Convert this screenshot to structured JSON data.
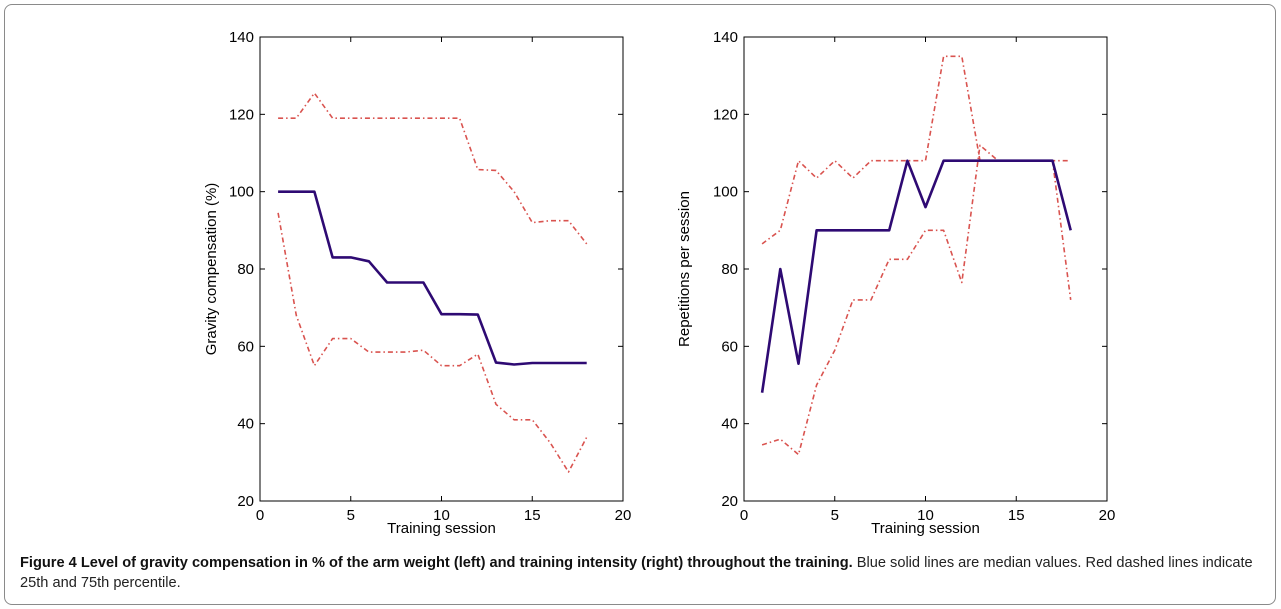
{
  "caption": {
    "label": "Figure 4",
    "title": "Level of gravity compensation in % of the arm weight (left) and training intensity (right) throughout the training.",
    "text": "Blue solid lines are median values. Red dashed lines indicate 25th and 75th percentile."
  },
  "colors": {
    "median": "#2e0a73",
    "percentile": "#d9534f",
    "axis": "#000000"
  },
  "chart_data": [
    {
      "type": "line",
      "title": "",
      "xlabel": "Training session",
      "ylabel": "Gravity compensation (%)",
      "xlim": [
        0,
        20
      ],
      "ylim": [
        20,
        140
      ],
      "xticks": [
        0,
        5,
        10,
        15,
        20
      ],
      "yticks": [
        20,
        40,
        60,
        80,
        100,
        120,
        140
      ],
      "grid": false,
      "series": [
        {
          "style": "solid",
          "x": [
            1,
            2,
            3,
            4,
            5,
            6,
            7,
            8,
            9,
            10,
            11,
            12,
            13,
            14,
            15,
            16,
            17,
            18
          ],
          "values": [
            100,
            100,
            100,
            83,
            83,
            82,
            76.5,
            76.5,
            76.5,
            68.3,
            68.3,
            68.2,
            55.8,
            55.3,
            55.7,
            55.7,
            55.7,
            55.7
          ]
        },
        {
          "style": "dashed",
          "x": [
            1,
            2,
            3,
            4,
            5,
            6,
            7,
            8,
            9,
            10,
            11,
            12,
            13,
            14,
            15,
            16,
            17,
            18
          ],
          "values": [
            119,
            119,
            125.5,
            119,
            119,
            119,
            119,
            119,
            119,
            119,
            119,
            105.7,
            105.5,
            100,
            92,
            92.5,
            92.5,
            86.5
          ]
        },
        {
          "style": "dashed",
          "x": [
            1,
            2,
            3,
            4,
            5,
            6,
            7,
            8,
            9,
            10,
            11,
            12,
            13,
            14,
            15,
            16,
            17,
            18
          ],
          "values": [
            94.5,
            68,
            55,
            62,
            62,
            58.5,
            58.5,
            58.5,
            59,
            55,
            55,
            58,
            45,
            41,
            41,
            35,
            27.5,
            36.5
          ]
        }
      ]
    },
    {
      "type": "line",
      "title": "",
      "xlabel": "Training session",
      "ylabel": "Repetitions per session",
      "xlim": [
        0,
        20
      ],
      "ylim": [
        20,
        140
      ],
      "xticks": [
        0,
        5,
        10,
        15,
        20
      ],
      "yticks": [
        20,
        40,
        60,
        80,
        100,
        120,
        140
      ],
      "grid": false,
      "series": [
        {
          "style": "solid",
          "x": [
            1,
            2,
            3,
            4,
            5,
            6,
            7,
            8,
            9,
            10,
            11,
            12,
            13,
            14,
            15,
            16,
            17,
            18
          ],
          "values": [
            48,
            80,
            55.5,
            90,
            90,
            90,
            90,
            90,
            108,
            96,
            108,
            108,
            108,
            108,
            108,
            108,
            108,
            90
          ]
        },
        {
          "style": "dashed",
          "x": [
            1,
            2,
            3,
            4,
            5,
            6,
            7,
            8,
            9,
            10,
            11,
            12,
            13,
            14,
            15,
            16,
            17,
            18
          ],
          "values": [
            86.5,
            90,
            108,
            103.5,
            108,
            103.5,
            108,
            108,
            108,
            108,
            135,
            135,
            108,
            108,
            108,
            108,
            108,
            108
          ]
        },
        {
          "style": "dashed",
          "x": [
            1,
            2,
            3,
            4,
            5,
            6,
            7,
            8,
            9,
            10,
            11,
            12,
            13,
            14,
            15,
            16,
            17,
            18
          ],
          "values": [
            34.5,
            36,
            32,
            50,
            59,
            72,
            72,
            82.5,
            82.5,
            90,
            90,
            76.5,
            112,
            108,
            108,
            108,
            108,
            72
          ]
        }
      ]
    }
  ]
}
